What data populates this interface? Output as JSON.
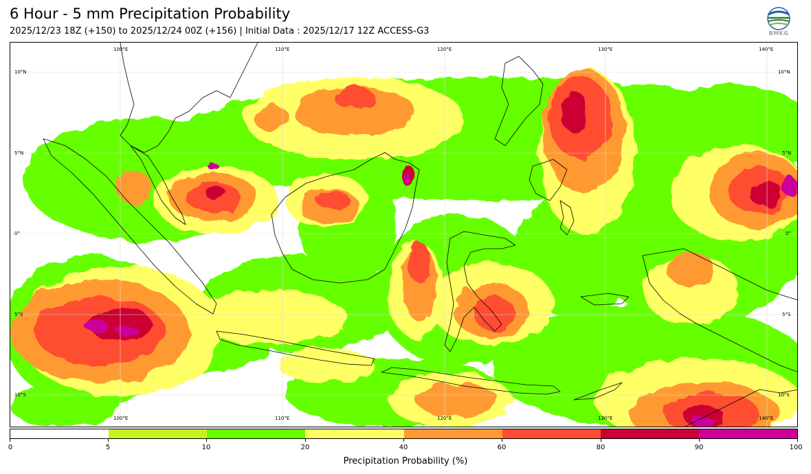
{
  "header": {
    "title": "6 Hour - 5 mm Precipitation Probability",
    "subtitle": "2025/12/23 18Z (+150) to 2025/12/24 00Z (+156) | Initial Data : 2025/12/17 12Z ACCESS-G3",
    "logo_text": "BMKG"
  },
  "map": {
    "lon_top_labels": [
      "100°E",
      "110°E",
      "120°E",
      "130°E",
      "140°E"
    ],
    "lon_bottom_labels": [
      "100°E",
      "110°E",
      "120°E",
      "130°E",
      "140°E"
    ],
    "lat_left_labels": [
      "10°N",
      "5°N",
      "0°",
      "5°S",
      "10°S"
    ],
    "lat_right_labels": [
      "10°N",
      "5°N",
      "0°",
      "5°S",
      "10°S"
    ],
    "colors": {
      "p0_5": "#ffffff",
      "p5_10": "#c6f21f",
      "p10_20": "#66ff00",
      "p20_40": "#ffff66",
      "p40_60": "#ff9a33",
      "p60_80": "#ff4d33",
      "p80_90": "#cc0033",
      "p90_100": "#cc0099"
    }
  },
  "colorbar": {
    "title": "Precipitation Probability (%)",
    "tick_labels": [
      "0",
      "5",
      "10",
      "20",
      "40",
      "60",
      "80",
      "90",
      "100"
    ],
    "segment_colors": [
      "#ffffff",
      "#c6f21f",
      "#66ff00",
      "#ffff66",
      "#ff9a33",
      "#ff4d33",
      "#cc0033",
      "#cc0099"
    ]
  }
}
